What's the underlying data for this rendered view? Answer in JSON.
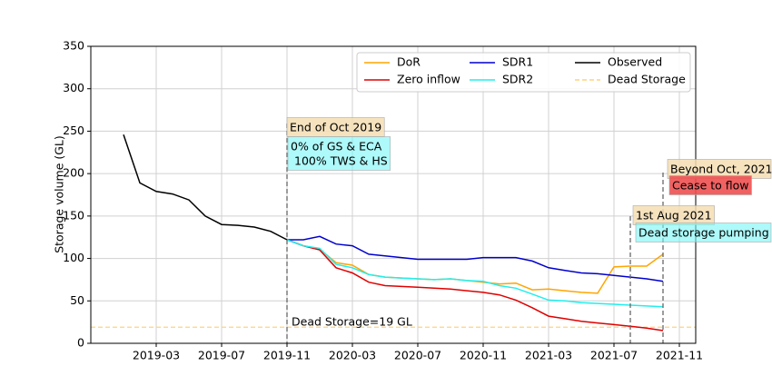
{
  "chart_data": {
    "type": "line",
    "ylabel": "Storage volume (GL)",
    "xlim": [
      "2018-11",
      "2021-12"
    ],
    "xticks": [
      "2019-03",
      "2019-07",
      "2019-11",
      "2020-03",
      "2020-07",
      "2020-11",
      "2021-03",
      "2021-07",
      "2021-11"
    ],
    "ylim": [
      0,
      350
    ],
    "yticks": [
      0,
      50,
      100,
      150,
      200,
      250,
      300,
      350
    ],
    "grid": true,
    "legend": "upper right",
    "series": [
      {
        "name": "DoR",
        "color": "#ffa500",
        "x": [
          "2019-11",
          "2019-12",
          "2020-01",
          "2020-02",
          "2020-03",
          "2020-04",
          "2020-05",
          "2020-06",
          "2020-07",
          "2020-08",
          "2020-09",
          "2020-10",
          "2020-11",
          "2020-12",
          "2021-01",
          "2021-02",
          "2021-03",
          "2021-04",
          "2021-05",
          "2021-06",
          "2021-07",
          "2021-08",
          "2021-09",
          "2021-10"
        ],
        "values": [
          122,
          115,
          111,
          95,
          92,
          81,
          78,
          77,
          76,
          75,
          76,
          74,
          72,
          70,
          71,
          63,
          64,
          62,
          60,
          59,
          90,
          91,
          91,
          105
        ]
      },
      {
        "name": "Zero inflow",
        "color": "#e00000",
        "x": [
          "2019-11",
          "2019-12",
          "2020-01",
          "2020-02",
          "2020-03",
          "2020-04",
          "2020-05",
          "2020-06",
          "2020-07",
          "2020-08",
          "2020-09",
          "2020-10",
          "2020-11",
          "2020-12",
          "2021-01",
          "2021-02",
          "2021-03",
          "2021-04",
          "2021-05",
          "2021-06",
          "2021-07",
          "2021-08",
          "2021-09",
          "2021-10"
        ],
        "values": [
          122,
          115,
          110,
          89,
          83,
          72,
          68,
          67,
          66,
          65,
          64,
          62,
          60,
          57,
          51,
          42,
          32,
          29,
          26,
          24,
          22,
          20,
          18,
          15
        ]
      },
      {
        "name": "SDR1",
        "color": "#0000cd",
        "x": [
          "2019-11",
          "2019-12",
          "2020-01",
          "2020-02",
          "2020-03",
          "2020-04",
          "2020-05",
          "2020-06",
          "2020-07",
          "2020-08",
          "2020-09",
          "2020-10",
          "2020-11",
          "2020-12",
          "2021-01",
          "2021-02",
          "2021-03",
          "2021-04",
          "2021-05",
          "2021-06",
          "2021-07",
          "2021-08",
          "2021-09",
          "2021-10"
        ],
        "values": [
          122,
          122,
          126,
          117,
          115,
          105,
          103,
          101,
          99,
          99,
          99,
          99,
          101,
          101,
          101,
          97,
          89,
          86,
          83,
          82,
          80,
          78,
          76,
          73
        ]
      },
      {
        "name": "SDR2",
        "color": "#22eeee",
        "x": [
          "2019-11",
          "2019-12",
          "2020-01",
          "2020-02",
          "2020-03",
          "2020-04",
          "2020-05",
          "2020-06",
          "2020-07",
          "2020-08",
          "2020-09",
          "2020-10",
          "2020-11",
          "2020-12",
          "2021-01",
          "2021-02",
          "2021-03",
          "2021-04",
          "2021-05",
          "2021-06",
          "2021-07",
          "2021-08",
          "2021-09",
          "2021-10"
        ],
        "values": [
          122,
          115,
          112,
          93,
          89,
          81,
          78,
          77,
          76,
          75,
          76,
          74,
          73,
          68,
          65,
          58,
          51,
          50,
          48,
          47,
          46,
          45,
          44,
          43
        ]
      },
      {
        "name": "Observed",
        "color": "#000000",
        "x": [
          "2019-01",
          "2019-02",
          "2019-03",
          "2019-04",
          "2019-05",
          "2019-06",
          "2019-07",
          "2019-08",
          "2019-09",
          "2019-10",
          "2019-11"
        ],
        "values": [
          246,
          189,
          179,
          176,
          169,
          150,
          140,
          139,
          137,
          132,
          122
        ]
      }
    ],
    "hlines": [
      {
        "name": "Dead Storage",
        "value": 19,
        "color": "#ffd27f"
      }
    ],
    "vlines": [
      "2019-11",
      "2021-08",
      "2021-10"
    ],
    "annotations": [
      {
        "text": "End of Oct 2019",
        "bg": "rgba(245,222,179,0.85)"
      },
      {
        "lines": [
          "0% of GS & ECA",
          "100% TWS & HS"
        ],
        "bg": "rgba(120,245,245,0.6)"
      },
      {
        "text": "Beyond Oct, 2021",
        "bg": "rgba(245,222,179,0.85)"
      },
      {
        "text": "Cease to flow",
        "bg": "rgba(240,80,80,0.9)"
      },
      {
        "text": "1st Aug 2021",
        "bg": "rgba(245,222,179,0.85)"
      },
      {
        "text": "Dead storage pumping",
        "bg": "rgba(120,245,245,0.6)"
      },
      {
        "text": "Dead Storage=19 GL"
      }
    ]
  }
}
